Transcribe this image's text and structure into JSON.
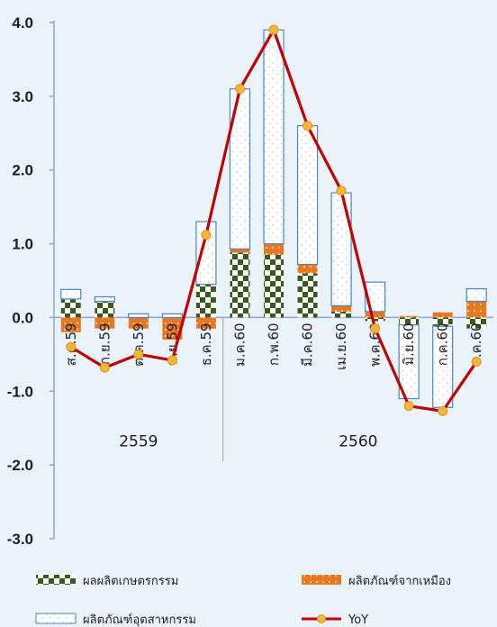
{
  "chart_data": {
    "type": "bar",
    "stacked": true,
    "ylim": [
      -3.0,
      4.0
    ],
    "yticks": [
      "4.0",
      "3.0",
      "2.0",
      "1.0",
      "0.0",
      "-1.0",
      "-2.0",
      "-3.0"
    ],
    "grid": false,
    "categories": [
      "ส.ค.59",
      "ก.ย.59",
      "ต.ค.59",
      "พ.ย.59",
      "ธ.ค.59",
      "ม.ค.60",
      "ก.พ.60",
      "มี.ค.60",
      "เม.ย.60",
      "พ.ค.60",
      "มิ.ย.60",
      "ก.ค.60",
      "ส.ค.60"
    ],
    "groups": [
      {
        "label": "2559",
        "count": 5
      },
      {
        "label": "2560",
        "count": 8
      }
    ],
    "series": [
      {
        "name": "ผลผลิตเกษตรกรรม",
        "kind": "bar",
        "pattern": "checker",
        "color": "#3a5a1c",
        "values": [
          0.25,
          0.22,
          0.0,
          0.0,
          0.45,
          0.88,
          0.85,
          0.6,
          0.08,
          -0.05,
          -0.1,
          -0.12,
          -0.15
        ]
      },
      {
        "name": "ผลิตภัณฑ์จากเหมือง",
        "kind": "bar",
        "pattern": "dots",
        "color": "#e87722",
        "values": [
          -0.2,
          -0.15,
          -0.15,
          -0.3,
          -0.15,
          0.05,
          0.15,
          0.12,
          0.08,
          0.08,
          0.02,
          0.07,
          0.22
        ]
      },
      {
        "name": "ผลิตภัณฑ์อุตสาหกรรม",
        "kind": "bar",
        "pattern": "sparse-dots",
        "color": "#4a86c8",
        "values": [
          0.13,
          0.06,
          0.05,
          0.05,
          0.85,
          2.17,
          2.9,
          1.88,
          1.53,
          0.4,
          -1.0,
          -1.1,
          0.17
        ]
      },
      {
        "name": "YoY",
        "kind": "line",
        "color": "#c00000",
        "values": [
          -0.4,
          -0.68,
          -0.5,
          -0.58,
          1.12,
          3.1,
          3.9,
          2.6,
          1.72,
          -0.15,
          -1.2,
          -1.27,
          -0.6
        ]
      }
    ],
    "legend_position": "bottom"
  }
}
